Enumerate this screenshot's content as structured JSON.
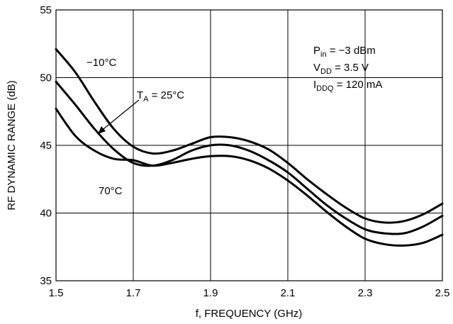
{
  "chart_data": {
    "type": "line",
    "title": "",
    "xlabel": "f, FREQUENCY (GHz)",
    "ylabel": "RF DYNAMIC RANGE (dB)",
    "xlim": [
      1.5,
      2.5
    ],
    "ylim": [
      35,
      55
    ],
    "xticks": [
      "1.5",
      "1.7",
      "1.9",
      "2.1",
      "2.3",
      "2.5"
    ],
    "yticks": [
      "35",
      "40",
      "45",
      "50",
      "55"
    ],
    "grid": true,
    "series": [
      {
        "name": "−10°C",
        "x": [
          1.5,
          1.55,
          1.6,
          1.65,
          1.7,
          1.75,
          1.8,
          1.85,
          1.9,
          1.95,
          2.0,
          2.05,
          2.1,
          2.15,
          2.2,
          2.25,
          2.3,
          2.35,
          2.4,
          2.45,
          2.5
        ],
        "y": [
          52.1,
          50.4,
          48.2,
          46.2,
          44.9,
          44.4,
          44.6,
          45.1,
          45.6,
          45.6,
          45.3,
          44.7,
          43.7,
          42.5,
          41.4,
          40.4,
          39.6,
          39.3,
          39.4,
          39.9,
          40.7
        ]
      },
      {
        "name": "T_A = 25°C",
        "x": [
          1.5,
          1.55,
          1.6,
          1.65,
          1.7,
          1.75,
          1.8,
          1.85,
          1.9,
          1.95,
          2.0,
          2.05,
          2.1,
          2.15,
          2.2,
          2.25,
          2.3,
          2.35,
          2.4,
          2.45,
          2.5
        ],
        "y": [
          49.7,
          48.0,
          46.2,
          44.7,
          43.7,
          43.5,
          43.9,
          44.6,
          45.0,
          45.0,
          44.6,
          43.9,
          43.0,
          41.8,
          40.6,
          39.6,
          38.8,
          38.5,
          38.5,
          39.0,
          39.8
        ]
      },
      {
        "name": "70°C",
        "x": [
          1.5,
          1.55,
          1.6,
          1.65,
          1.7,
          1.75,
          1.8,
          1.85,
          1.9,
          1.95,
          2.0,
          2.05,
          2.1,
          2.15,
          2.2,
          2.25,
          2.3,
          2.35,
          2.4,
          2.45,
          2.5
        ],
        "y": [
          47.7,
          45.7,
          44.6,
          44.0,
          43.9,
          43.5,
          43.7,
          44.0,
          44.2,
          44.2,
          43.9,
          43.3,
          42.4,
          41.3,
          40.1,
          39.0,
          38.1,
          37.7,
          37.6,
          37.8,
          38.4
        ]
      }
    ],
    "annotations": {
      "label_minus10": "−10°C",
      "label_25_pre": "T",
      "label_25_sub": "A",
      "label_25_post": " = 25°C",
      "label_70": "70°C",
      "cond1_main": "P",
      "cond1_sub": "in",
      "cond1_post": " = −3 dBm",
      "cond2_main": "V",
      "cond2_sub": "DD",
      "cond2_post": " = 3.5 V",
      "cond3_main": "I",
      "cond3_sub": "DDQ",
      "cond3_post": " = 120 mA"
    },
    "colors": {
      "line": "#000000",
      "grid": "#000000",
      "background": "#ffffff"
    }
  }
}
